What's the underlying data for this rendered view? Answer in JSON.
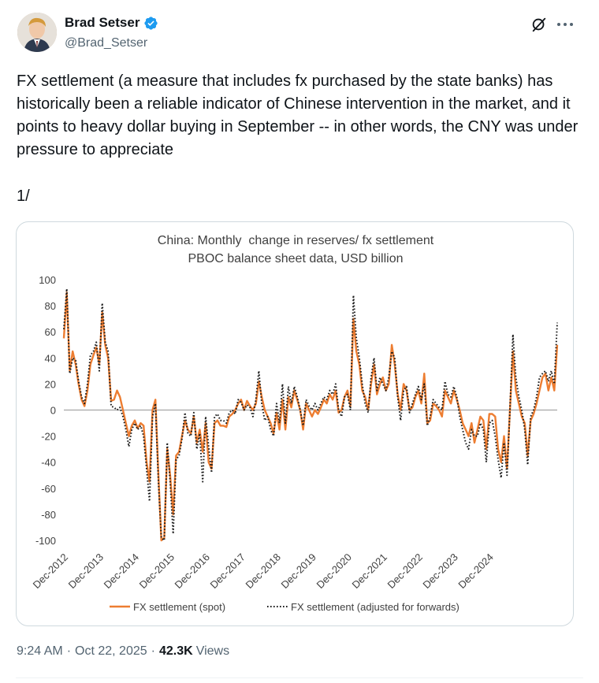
{
  "author": {
    "display_name": "Brad Setser",
    "handle": "@Brad_Setser",
    "verified_color": "#1d9bf0"
  },
  "tweet": {
    "text": "FX settlement (a measure that includes fx purchased by the state banks) has historically been a reliable indicator of Chinese intervention in the market, and it points to heavy dollar buying in September -- in other words, the CNY was under pressure to appreciate",
    "thread_marker": "1/"
  },
  "meta": {
    "time": "9:24 AM",
    "date": "Oct 22, 2025",
    "separator": "·",
    "views_count": "42.3K",
    "views_label": "Views"
  },
  "icons": [
    "verified-badge-icon",
    "grok-icon",
    "more-icon"
  ],
  "chart_data": {
    "type": "line",
    "title": "China: Monthly  change in reserves/ fx settlement",
    "subtitle": "PBOC balance sheet data, USD billion",
    "ylim": [
      -100,
      100
    ],
    "yticks": [
      100,
      80,
      60,
      40,
      20,
      0,
      -20,
      -40,
      -60,
      -80,
      -100
    ],
    "xticks": [
      "Dec-2012",
      "Dec-2013",
      "Dec-2014",
      "Dec-2015",
      "Dec-2016",
      "Dec-2017",
      "Dec-2018",
      "Dec-2019",
      "Dec-2020",
      "Dec-2021",
      "Dec-2022",
      "Dec-2023",
      "Dec-2024"
    ],
    "start_period": "Dec-2012",
    "frequency": "monthly",
    "grid": false,
    "zero_line": true,
    "legend": "bottom",
    "series": [
      {
        "name": "FX settlement (spot)",
        "color": "#ed7d31",
        "style": "solid",
        "values": [
          55,
          90,
          30,
          45,
          35,
          20,
          8,
          3,
          15,
          35,
          42,
          48,
          35,
          75,
          50,
          40,
          7,
          8,
          15,
          10,
          0,
          -10,
          -20,
          -12,
          -8,
          -14,
          -10,
          -12,
          -40,
          -55,
          0,
          8,
          -50,
          -100,
          -98,
          -30,
          -50,
          -80,
          -35,
          -32,
          -20,
          -8,
          -15,
          -18,
          -5,
          -25,
          -15,
          -32,
          -10,
          -40,
          -45,
          -10,
          -8,
          -12,
          -12,
          -13,
          -5,
          -3,
          0,
          5,
          8,
          0,
          7,
          3,
          0,
          5,
          22,
          10,
          0,
          -5,
          -10,
          -18,
          -2,
          -15,
          8,
          -15,
          10,
          2,
          15,
          8,
          0,
          -15,
          5,
          0,
          -5,
          0,
          -3,
          2,
          8,
          5,
          12,
          8,
          15,
          -2,
          0,
          10,
          15,
          3,
          70,
          45,
          35,
          15,
          10,
          0,
          20,
          35,
          12,
          20,
          25,
          15,
          20,
          50,
          35,
          12,
          0,
          20,
          15,
          0,
          2,
          10,
          15,
          5,
          28,
          -10,
          -8,
          5,
          3,
          0,
          -5,
          15,
          10,
          5,
          15,
          8,
          0,
          -10,
          -15,
          -20,
          -10,
          -25,
          -15,
          -5,
          -8,
          -30,
          -3,
          -3,
          -5,
          -30,
          -40,
          -20,
          -45,
          0,
          45,
          15,
          5,
          -5,
          -10,
          -35,
          -8,
          -3,
          5,
          15,
          25,
          28,
          15,
          25,
          15,
          50
        ]
      },
      {
        "name": "FX settlement (adjusted for forwards)",
        "color": "#1a1a1a",
        "style": "dotted",
        "values": [
          62,
          93,
          28,
          40,
          38,
          22,
          10,
          5,
          20,
          42,
          45,
          52,
          30,
          82,
          52,
          45,
          3,
          2,
          0,
          2,
          -5,
          -15,
          -28,
          -15,
          -10,
          -15,
          -12,
          -20,
          -45,
          -70,
          -5,
          5,
          -55,
          -98,
          -100,
          -25,
          -55,
          -95,
          -38,
          -35,
          -22,
          -2,
          -18,
          -20,
          -2,
          -30,
          -18,
          -55,
          -5,
          -28,
          -48,
          -5,
          -3,
          -8,
          -8,
          -10,
          -2,
          0,
          -3,
          8,
          6,
          0,
          4,
          2,
          -5,
          8,
          30,
          5,
          -8,
          -5,
          -15,
          -20,
          5,
          -10,
          20,
          -10,
          18,
          5,
          18,
          10,
          0,
          -12,
          8,
          3,
          0,
          5,
          0,
          5,
          10,
          8,
          15,
          12,
          20,
          0,
          -5,
          10,
          12,
          0,
          88,
          55,
          40,
          20,
          5,
          -2,
          25,
          40,
          15,
          25,
          20,
          15,
          25,
          45,
          40,
          10,
          -8,
          15,
          18,
          -2,
          5,
          12,
          18,
          8,
          20,
          -12,
          -5,
          8,
          5,
          2,
          0,
          22,
          12,
          10,
          18,
          10,
          -5,
          -15,
          -25,
          -30,
          -15,
          -20,
          -20,
          -10,
          -15,
          -40,
          -10,
          -8,
          -20,
          -38,
          -52,
          -25,
          -50,
          0,
          58,
          25,
          10,
          0,
          -15,
          -42,
          -5,
          0,
          10,
          25,
          28,
          30,
          22,
          30,
          20,
          67
        ]
      }
    ]
  }
}
